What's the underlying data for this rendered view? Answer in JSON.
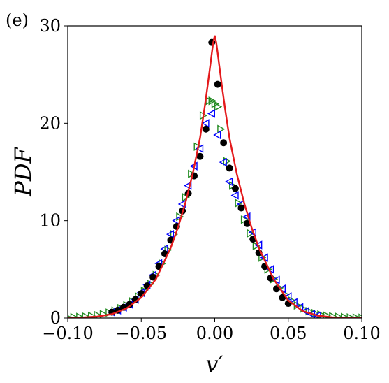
{
  "panel_label": "(e)",
  "chart_data": {
    "type": "line",
    "title": "",
    "xlabel": "v′",
    "ylabel": "PDF",
    "xlim": [
      -0.1,
      0.1
    ],
    "ylim": [
      0,
      30
    ],
    "x_ticks": [
      "−0.10",
      "−0.05",
      "0.00",
      "0.05",
      "0.10"
    ],
    "y_ticks": [
      "0",
      "10",
      "20",
      "30"
    ],
    "grid": false,
    "legend": "none",
    "series": [
      {
        "marker": "line",
        "color": "#e41a1c",
        "x": [
          -0.1,
          -0.09,
          -0.08,
          -0.07,
          -0.06,
          -0.05,
          -0.04,
          -0.03,
          -0.025,
          -0.02,
          -0.015,
          -0.01,
          -0.007,
          -0.005,
          -0.003,
          -0.002,
          -0.001,
          0.0,
          0.001,
          0.002,
          0.003,
          0.005,
          0.007,
          0.01,
          0.015,
          0.02,
          0.025,
          0.03,
          0.04,
          0.05,
          0.06,
          0.07,
          0.08,
          0.09,
          0.1
        ],
        "y": [
          0.02,
          0.06,
          0.15,
          0.4,
          1.0,
          2.1,
          4.0,
          7.2,
          9.3,
          11.8,
          14.8,
          18.5,
          21.5,
          23.7,
          26.0,
          27.2,
          28.3,
          29.0,
          28.3,
          27.2,
          26.0,
          23.7,
          21.5,
          18.5,
          14.8,
          11.8,
          9.3,
          7.2,
          4.0,
          1.8,
          0.7,
          0.25,
          0.08,
          0.03,
          0.01
        ]
      },
      {
        "marker": "filled-circle",
        "color": "#000000",
        "x": [
          -0.07,
          -0.066,
          -0.062,
          -0.058,
          -0.054,
          -0.05,
          -0.046,
          -0.042,
          -0.038,
          -0.034,
          -0.03,
          -0.026,
          -0.022,
          -0.018,
          -0.014,
          -0.01,
          -0.006,
          -0.002,
          0.002,
          0.006,
          0.01,
          0.014,
          0.018,
          0.022,
          0.026,
          0.03,
          0.034,
          0.038,
          0.042,
          0.046,
          0.05
        ],
        "y": [
          0.6,
          0.8,
          1.1,
          1.4,
          1.9,
          2.5,
          3.3,
          4.2,
          5.3,
          6.6,
          8.0,
          9.4,
          11.0,
          12.8,
          14.6,
          16.6,
          19.4,
          28.3,
          24.0,
          18.0,
          15.4,
          13.3,
          11.3,
          9.7,
          8.1,
          6.7,
          5.3,
          4.1,
          3.0,
          2.1,
          1.5
        ]
      },
      {
        "marker": "left-triangle",
        "color": "#0000ff",
        "x": [
          -0.07,
          -0.066,
          -0.062,
          -0.058,
          -0.054,
          -0.05,
          -0.046,
          -0.042,
          -0.038,
          -0.034,
          -0.03,
          -0.026,
          -0.022,
          -0.018,
          -0.014,
          -0.01,
          -0.006,
          -0.002,
          0.002,
          0.006,
          0.01,
          0.014,
          0.018,
          0.022,
          0.026,
          0.03,
          0.034,
          0.038,
          0.042,
          0.046,
          0.05,
          0.054,
          0.058,
          0.062,
          0.066,
          0.07
        ],
        "y": [
          0.6,
          0.8,
          1.1,
          1.4,
          1.9,
          2.6,
          3.4,
          4.4,
          5.6,
          7.1,
          8.6,
          10.0,
          11.7,
          13.6,
          15.6,
          17.4,
          20.0,
          21.0,
          18.8,
          16.0,
          14.0,
          12.6,
          11.7,
          10.4,
          8.8,
          7.5,
          6.2,
          5.0,
          3.9,
          3.0,
          2.2,
          1.6,
          1.1,
          0.7,
          0.4,
          0.25
        ]
      },
      {
        "marker": "right-triangle",
        "color": "#228b22",
        "x": [
          -0.1,
          -0.096,
          -0.092,
          -0.088,
          -0.084,
          -0.08,
          -0.076,
          -0.072,
          -0.068,
          -0.064,
          -0.06,
          -0.056,
          -0.052,
          -0.048,
          -0.044,
          -0.04,
          -0.036,
          -0.032,
          -0.028,
          -0.024,
          -0.02,
          -0.016,
          -0.012,
          -0.008,
          -0.004,
          -0.002,
          0.0,
          0.002,
          0.004,
          0.008,
          0.012,
          0.016,
          0.02,
          0.024,
          0.028,
          0.032,
          0.036,
          0.04,
          0.044,
          0.048,
          0.052,
          0.056,
          0.06,
          0.064,
          0.068,
          0.072,
          0.076,
          0.08,
          0.084,
          0.088,
          0.092,
          0.096,
          0.1
        ],
        "y": [
          0.05,
          0.08,
          0.11,
          0.15,
          0.22,
          0.3,
          0.4,
          0.55,
          0.75,
          1.0,
          1.3,
          1.7,
          2.2,
          2.8,
          3.5,
          4.4,
          5.6,
          7.0,
          8.6,
          10.4,
          12.4,
          14.8,
          17.6,
          20.8,
          22.3,
          22.3,
          22.0,
          21.7,
          19.4,
          16.1,
          13.6,
          11.8,
          10.1,
          8.7,
          7.4,
          6.2,
          5.0,
          4.0,
          3.1,
          2.4,
          1.8,
          1.3,
          0.95,
          0.7,
          0.5,
          0.35,
          0.25,
          0.18,
          0.13,
          0.09,
          0.06,
          0.04,
          0.03
        ]
      }
    ]
  }
}
